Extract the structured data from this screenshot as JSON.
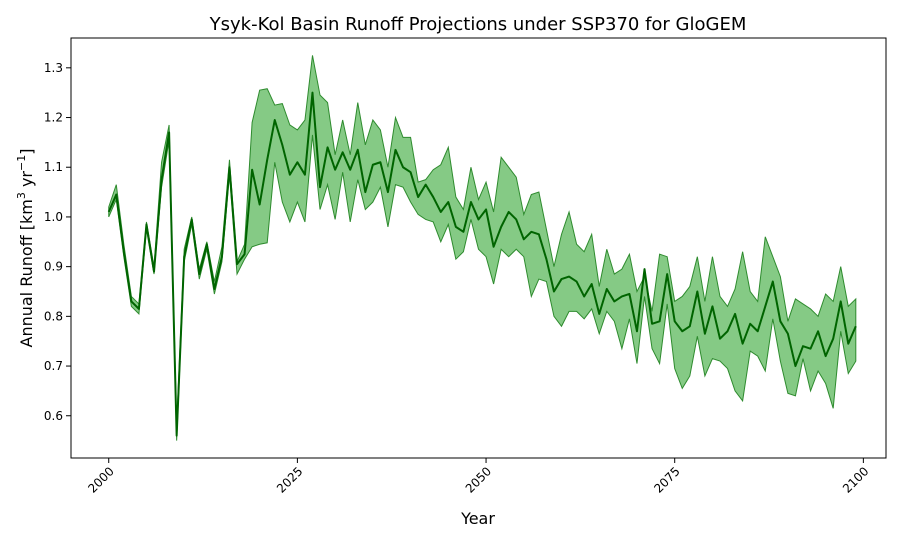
{
  "chart_data": {
    "type": "line",
    "title": "Ysyk-Kol Basin Runoff Projections under SSP370 for GloGEM",
    "xlabel": "Year",
    "ylabel_main": "Annual Runoff [km",
    "ylabel_sup1": "3",
    "ylabel_mid": " yr",
    "ylabel_sup2": "−1",
    "ylabel_end": "]",
    "xlim": [
      1995,
      2103
    ],
    "ylim": [
      0.515,
      1.36
    ],
    "x_ticks": [
      2000,
      2025,
      2050,
      2075,
      2100
    ],
    "y_ticks": [
      0.6,
      0.7,
      0.8,
      0.9,
      1.0,
      1.1,
      1.2,
      1.3
    ],
    "legend": "none",
    "grid": false,
    "colors": {
      "line": "#006400",
      "band_fill": "#5cb85c",
      "band_edge": "#2e8b2e"
    },
    "x_start": 2000,
    "series": [
      {
        "role": "median",
        "values": [
          1.01,
          1.045,
          0.93,
          0.83,
          0.815,
          0.985,
          0.89,
          1.075,
          1.17,
          0.56,
          0.92,
          0.995,
          0.885,
          0.945,
          0.855,
          0.92,
          1.1,
          0.905,
          0.925,
          1.095,
          1.025,
          1.115,
          1.195,
          1.145,
          1.085,
          1.11,
          1.085,
          1.25,
          1.06,
          1.14,
          1.095,
          1.13,
          1.095,
          1.135,
          1.05,
          1.105,
          1.11,
          1.05,
          1.135,
          1.1,
          1.09,
          1.04,
          1.065,
          1.04,
          1.01,
          1.03,
          0.98,
          0.97,
          1.03,
          0.995,
          1.015,
          0.94,
          0.98,
          1.01,
          0.995,
          0.955,
          0.97,
          0.965,
          0.915,
          0.85,
          0.875,
          0.88,
          0.87,
          0.84,
          0.865,
          0.805,
          0.855,
          0.83,
          0.84,
          0.845,
          0.77,
          0.895,
          0.785,
          0.79,
          0.885,
          0.79,
          0.77,
          0.78,
          0.85,
          0.765,
          0.82,
          0.755,
          0.77,
          0.805,
          0.745,
          0.785,
          0.77,
          0.82,
          0.87,
          0.79,
          0.765,
          0.7,
          0.74,
          0.735,
          0.77,
          0.72,
          0.755,
          0.83,
          0.745,
          0.78
        ]
      },
      {
        "role": "upper",
        "values": [
          1.02,
          1.065,
          0.945,
          0.84,
          0.825,
          0.99,
          0.9,
          1.11,
          1.185,
          0.58,
          0.935,
          1.0,
          0.895,
          0.95,
          0.87,
          0.94,
          1.115,
          0.91,
          0.945,
          1.19,
          1.255,
          1.258,
          1.225,
          1.228,
          1.185,
          1.175,
          1.195,
          1.325,
          1.245,
          1.23,
          1.125,
          1.195,
          1.125,
          1.23,
          1.145,
          1.195,
          1.175,
          1.1,
          1.2,
          1.16,
          1.16,
          1.07,
          1.075,
          1.095,
          1.105,
          1.14,
          1.04,
          1.015,
          1.1,
          1.035,
          1.07,
          1.01,
          1.12,
          1.1,
          1.08,
          1.005,
          1.045,
          1.05,
          0.975,
          0.9,
          0.965,
          1.01,
          0.945,
          0.93,
          0.965,
          0.86,
          0.935,
          0.885,
          0.895,
          0.925,
          0.85,
          0.88,
          0.81,
          0.925,
          0.92,
          0.83,
          0.84,
          0.86,
          0.92,
          0.83,
          0.92,
          0.84,
          0.82,
          0.855,
          0.93,
          0.85,
          0.83,
          0.96,
          0.92,
          0.88,
          0.79,
          0.835,
          0.825,
          0.815,
          0.8,
          0.845,
          0.83,
          0.9,
          0.82,
          0.835
        ]
      },
      {
        "role": "lower",
        "values": [
          1.0,
          1.035,
          0.92,
          0.82,
          0.805,
          0.975,
          0.885,
          1.06,
          1.155,
          0.55,
          0.91,
          0.985,
          0.875,
          0.935,
          0.845,
          0.91,
          1.085,
          0.885,
          0.915,
          0.94,
          0.945,
          0.948,
          1.11,
          1.03,
          0.99,
          1.03,
          0.99,
          1.165,
          1.015,
          1.065,
          0.995,
          1.09,
          0.99,
          1.075,
          1.015,
          1.03,
          1.06,
          0.98,
          1.065,
          1.06,
          1.03,
          1.005,
          0.995,
          0.99,
          0.95,
          0.985,
          0.915,
          0.93,
          0.995,
          0.935,
          0.92,
          0.865,
          0.935,
          0.92,
          0.935,
          0.92,
          0.84,
          0.875,
          0.87,
          0.8,
          0.78,
          0.81,
          0.81,
          0.795,
          0.815,
          0.765,
          0.81,
          0.79,
          0.735,
          0.795,
          0.705,
          0.84,
          0.735,
          0.705,
          0.825,
          0.695,
          0.655,
          0.68,
          0.76,
          0.68,
          0.715,
          0.71,
          0.695,
          0.65,
          0.63,
          0.73,
          0.72,
          0.69,
          0.795,
          0.71,
          0.645,
          0.64,
          0.715,
          0.65,
          0.69,
          0.665,
          0.615,
          0.77,
          0.685,
          0.71
        ]
      }
    ]
  }
}
